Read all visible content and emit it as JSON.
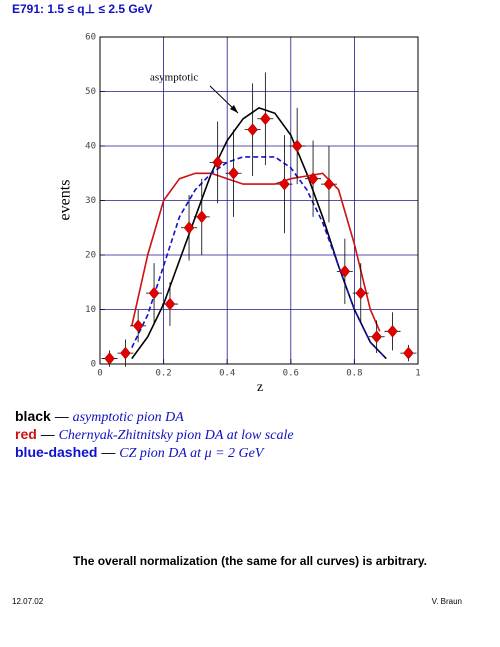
{
  "chart_data": {
    "type": "line",
    "title": "E791: 1.5 ≤ q⊥ ≤ 2.5 GeV",
    "ylabel": "events",
    "xlabel": "z",
    "annotation": "asymptotic",
    "xlim": [
      0,
      1
    ],
    "ylim": [
      0,
      60
    ],
    "xticks": [
      0,
      0.2,
      0.4,
      0.6,
      0.8,
      1
    ],
    "yticks": [
      0,
      10,
      20,
      30,
      40,
      50,
      60
    ],
    "grid": true,
    "grid_color": "#1a1a8c",
    "legend_separator": "—",
    "series": [
      {
        "key": "black",
        "name": "asymptotic pion DA",
        "color": "#000000",
        "dashed": false,
        "x": [
          0.1,
          0.15,
          0.2,
          0.25,
          0.3,
          0.35,
          0.4,
          0.45,
          0.5,
          0.55,
          0.6,
          0.65,
          0.7,
          0.75,
          0.8,
          0.85,
          0.9
        ],
        "values": [
          1,
          5,
          11,
          19,
          27,
          35,
          41,
          45,
          47,
          46,
          42,
          35,
          27,
          18,
          10,
          4,
          1
        ]
      },
      {
        "key": "red",
        "name": "Chernyak-Zhitnitsky pion DA at low scale",
        "color": "#d01010",
        "dashed": false,
        "x": [
          0.1,
          0.15,
          0.2,
          0.25,
          0.3,
          0.35,
          0.4,
          0.45,
          0.5,
          0.55,
          0.6,
          0.65,
          0.7,
          0.75,
          0.8,
          0.85,
          0.88
        ],
        "values": [
          7,
          20,
          30,
          34,
          35,
          35,
          34,
          33,
          33,
          33,
          34,
          34.5,
          35,
          32,
          22,
          10,
          6
        ]
      },
      {
        "key": "blue-dashed",
        "name": "CZ pion DA at μ = 2 GeV",
        "color": "#1010d0",
        "dashed": true,
        "x": [
          0.1,
          0.15,
          0.2,
          0.25,
          0.3,
          0.35,
          0.4,
          0.45,
          0.5,
          0.55,
          0.6,
          0.65,
          0.7,
          0.75,
          0.8,
          0.85,
          0.9
        ],
        "values": [
          3,
          9,
          18,
          27,
          32,
          35,
          37,
          38,
          38,
          38,
          36,
          32,
          26,
          18,
          10,
          4,
          1
        ]
      }
    ],
    "points": {
      "color": "#e00000",
      "x": [
        0.03,
        0.08,
        0.12,
        0.17,
        0.22,
        0.28,
        0.32,
        0.37,
        0.42,
        0.48,
        0.52,
        0.58,
        0.62,
        0.67,
        0.72,
        0.77,
        0.82,
        0.87,
        0.92,
        0.97
      ],
      "values": [
        1,
        2,
        7,
        13,
        11,
        25,
        27,
        37,
        35,
        43,
        45,
        33,
        40,
        34,
        33,
        17,
        13,
        5,
        6,
        2
      ],
      "errors": [
        1.5,
        2.5,
        3,
        5.5,
        4,
        6,
        7,
        7.5,
        8,
        8.5,
        8.5,
        9,
        7,
        7,
        7,
        6,
        5.5,
        3,
        3.5,
        1.5
      ]
    }
  },
  "caption": "The overall normalization (the same for all curves) is arbitrary.",
  "footer": {
    "date": "12.07.02",
    "author": "V. Braun"
  }
}
